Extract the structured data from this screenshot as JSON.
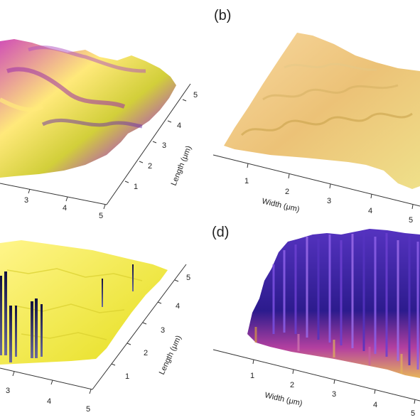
{
  "panels": {
    "a": {
      "label": "",
      "x_ticks": [
        "3",
        "4",
        "5"
      ],
      "y_ticks": [
        "1",
        "2",
        "3",
        "4",
        "5"
      ],
      "x_axis_label": "",
      "y_axis_label": "Length (μm)",
      "palette": [
        "#ffe97a",
        "#d2cf3a",
        "#d14fb6",
        "#6b2fa5"
      ]
    },
    "b": {
      "label": "(b)",
      "x_ticks": [
        "1",
        "2",
        "3",
        "4",
        "5"
      ],
      "y_ticks": [],
      "x_axis_label": "Width (μm)",
      "y_axis_label": "",
      "palette": [
        "#f8d8a0",
        "#ecc277",
        "#d9b24b",
        "#efe08a"
      ]
    },
    "c": {
      "label": "",
      "x_ticks": [
        "3",
        "4",
        "5"
      ],
      "y_ticks": [
        "1",
        "2",
        "3",
        "4",
        "5"
      ],
      "x_axis_label": "",
      "y_axis_label": "Length (μm)",
      "palette": [
        "#fff58a",
        "#e5de1c",
        "#22227a",
        "#101040"
      ]
    },
    "d": {
      "label": "(d)",
      "x_ticks": [
        "1",
        "2",
        "3",
        "4",
        "5"
      ],
      "y_ticks": [],
      "x_axis_label": "Width (μm)",
      "y_axis_label": "",
      "palette": [
        "#2c1b8d",
        "#5533c0",
        "#b440a0",
        "#e7b55a"
      ]
    }
  }
}
